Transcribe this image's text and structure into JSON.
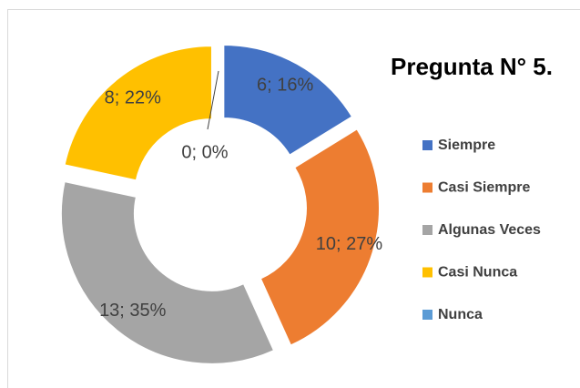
{
  "chart_data": {
    "type": "doughnut",
    "title": "Pregunta N° 5.",
    "categories": [
      "Siempre",
      "Casi Siempre",
      "Algunas Veces",
      "Casi Nunca",
      "Nunca"
    ],
    "values": [
      6,
      10,
      13,
      8,
      0
    ],
    "value_labels": [
      "6; 16%",
      "10; 27%",
      "13; 35%",
      "8; 22%",
      "0; 0%"
    ],
    "colors": [
      "#4472c4",
      "#ed7d31",
      "#a5a5a5",
      "#ffc000",
      "#5b9bd5"
    ],
    "legend": "right"
  }
}
